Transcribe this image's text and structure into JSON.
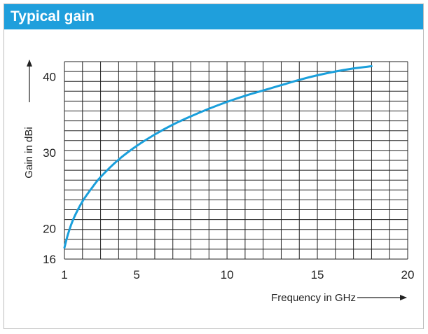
{
  "panel": {
    "title": "Typical gain"
  },
  "colors": {
    "header_bg": "#1f9fdc",
    "curve": "#1a9fdb",
    "grid": "#222222"
  },
  "chart_data": {
    "type": "line",
    "title": "Typical gain",
    "xlabel": "Frequency in GHz",
    "ylabel": "Gain in dBi",
    "xlim": [
      1,
      20
    ],
    "ylim": [
      16,
      42
    ],
    "x_ticks": [
      1,
      5,
      10,
      15,
      20
    ],
    "y_ticks": [
      16,
      20,
      30,
      40
    ],
    "grid": true,
    "x_grid_step": 1,
    "y_grid_step": 1.3,
    "series": [
      {
        "x": [
          1,
          1.2,
          1.5,
          2,
          2.5,
          3,
          4,
          5,
          6,
          7,
          8,
          9,
          10,
          11,
          12,
          13,
          14,
          15,
          16,
          17,
          18
        ],
        "values": [
          17.5,
          19.3,
          21.3,
          23.6,
          25.3,
          26.8,
          29.1,
          30.9,
          32.4,
          33.7,
          34.8,
          35.8,
          36.7,
          37.5,
          38.2,
          38.9,
          39.6,
          40.2,
          40.7,
          41.1,
          41.4
        ]
      }
    ]
  }
}
